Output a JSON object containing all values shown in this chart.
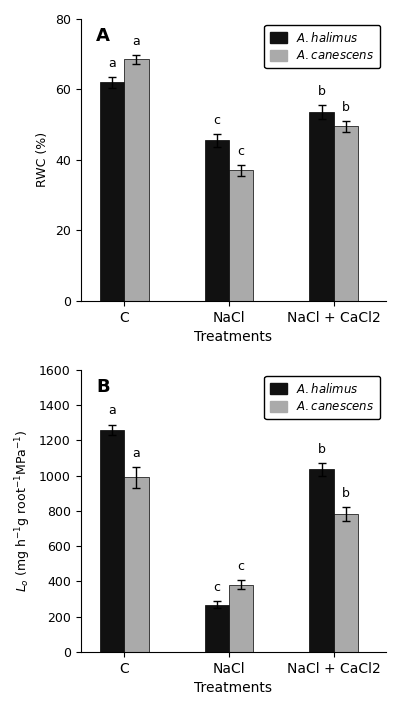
{
  "panel_A": {
    "title": "A",
    "ylabel": "RWC (%)",
    "xlabel": "Treatments",
    "ylim": [
      0,
      80
    ],
    "yticks": [
      0,
      20,
      40,
      60,
      80
    ],
    "categories": [
      "C",
      "NaCl",
      "NaCl + CaCl2"
    ],
    "halimus_values": [
      62,
      45.5,
      53.5
    ],
    "halimus_errors": [
      1.5,
      1.8,
      2.0
    ],
    "canescens_values": [
      68.5,
      37.0,
      49.5
    ],
    "canescens_errors": [
      1.2,
      1.5,
      1.5
    ],
    "halimus_labels": [
      "a",
      "c",
      "b"
    ],
    "canescens_labels": [
      "a",
      "c",
      "b"
    ],
    "bar_color_halimus": "#111111",
    "bar_color_canescens": "#aaaaaa",
    "bar_width": 0.28,
    "x_positions": [
      0.5,
      1.7,
      2.9
    ]
  },
  "panel_B": {
    "title": "B",
    "ylabel": "$\\mathit{L}_o$ (mg h$^{-1}$g root$^{-1}$MPa$^{-1}$)",
    "xlabel": "Treatments",
    "ylim": [
      0,
      1600
    ],
    "yticks": [
      0,
      200,
      400,
      600,
      800,
      1000,
      1200,
      1400,
      1600
    ],
    "categories": [
      "C",
      "NaCl",
      "NaCl + CaCl2"
    ],
    "halimus_values": [
      1260,
      268,
      1035
    ],
    "halimus_errors": [
      30,
      18,
      35
    ],
    "canescens_values": [
      990,
      380,
      780
    ],
    "canescens_errors": [
      60,
      25,
      40
    ],
    "halimus_labels": [
      "a",
      "c",
      "b"
    ],
    "canescens_labels": [
      "a",
      "c",
      "b"
    ],
    "bar_color_halimus": "#111111",
    "bar_color_canescens": "#aaaaaa",
    "bar_width": 0.28,
    "x_positions": [
      0.5,
      1.7,
      2.9
    ]
  },
  "figure_width": 4.0,
  "figure_height": 7.09,
  "dpi": 100
}
